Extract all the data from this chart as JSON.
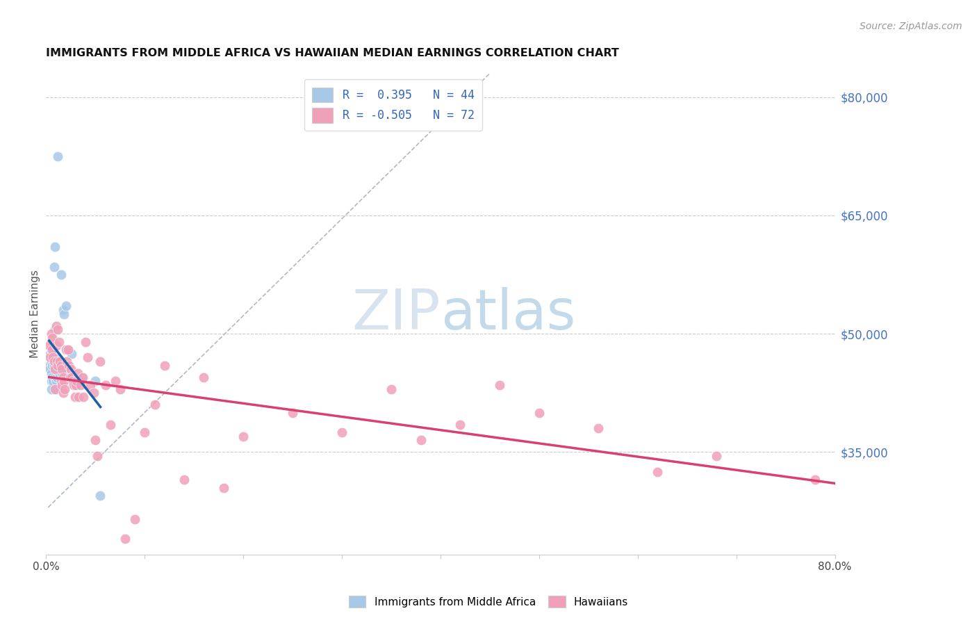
{
  "title": "IMMIGRANTS FROM MIDDLE AFRICA VS HAWAIIAN MEDIAN EARNINGS CORRELATION CHART",
  "source": "Source: ZipAtlas.com",
  "ylabel": "Median Earnings",
  "right_yticks": [
    35000,
    50000,
    65000,
    80000
  ],
  "right_yticklabels": [
    "$35,000",
    "$50,000",
    "$65,000",
    "$80,000"
  ],
  "blue_color": "#a8c8e8",
  "blue_line_color": "#1a5fa8",
  "pink_color": "#f0a0b8",
  "pink_line_color": "#d84070",
  "dash_color": "#b0b8c8",
  "watermark_color": "#c8d8f0",
  "xlim": [
    0.0,
    0.8
  ],
  "ylim": [
    22000,
    83000
  ],
  "blue_scatter_x": [
    0.003,
    0.004,
    0.004,
    0.005,
    0.005,
    0.005,
    0.005,
    0.005,
    0.006,
    0.006,
    0.006,
    0.007,
    0.007,
    0.008,
    0.008,
    0.008,
    0.009,
    0.009,
    0.009,
    0.009,
    0.01,
    0.01,
    0.01,
    0.01,
    0.011,
    0.011,
    0.012,
    0.013,
    0.013,
    0.014,
    0.015,
    0.016,
    0.017,
    0.018,
    0.019,
    0.02,
    0.022,
    0.024,
    0.026,
    0.03,
    0.034,
    0.036,
    0.05,
    0.055
  ],
  "blue_scatter_y": [
    46000,
    47500,
    45500,
    48000,
    46500,
    45000,
    44000,
    43000,
    49000,
    46000,
    44500,
    47500,
    44000,
    58500,
    47000,
    46000,
    61000,
    50500,
    47000,
    44500,
    46500,
    45500,
    44000,
    43000,
    46000,
    44500,
    72500,
    46000,
    45000,
    44800,
    57500,
    45000,
    53000,
    52500,
    45000,
    53500,
    48000,
    44500,
    47500,
    44000,
    44000,
    44500,
    44000,
    29500
  ],
  "pink_scatter_x": [
    0.003,
    0.004,
    0.005,
    0.006,
    0.006,
    0.007,
    0.008,
    0.009,
    0.009,
    0.01,
    0.01,
    0.011,
    0.012,
    0.012,
    0.013,
    0.014,
    0.015,
    0.015,
    0.016,
    0.016,
    0.017,
    0.017,
    0.018,
    0.019,
    0.02,
    0.021,
    0.022,
    0.023,
    0.024,
    0.025,
    0.026,
    0.027,
    0.028,
    0.029,
    0.03,
    0.031,
    0.032,
    0.033,
    0.035,
    0.037,
    0.038,
    0.04,
    0.042,
    0.045,
    0.048,
    0.05,
    0.052,
    0.055,
    0.06,
    0.065,
    0.07,
    0.075,
    0.08,
    0.09,
    0.1,
    0.11,
    0.12,
    0.14,
    0.16,
    0.18,
    0.2,
    0.25,
    0.3,
    0.35,
    0.38,
    0.42,
    0.46,
    0.5,
    0.56,
    0.62,
    0.68,
    0.78
  ],
  "pink_scatter_y": [
    48500,
    47000,
    50000,
    49500,
    48000,
    47000,
    46500,
    45500,
    43000,
    51000,
    48500,
    46500,
    50500,
    46000,
    49000,
    46500,
    46000,
    44000,
    45500,
    43500,
    44500,
    42500,
    44000,
    43000,
    48000,
    46500,
    48000,
    46000,
    44500,
    45500,
    44500,
    44000,
    43500,
    42000,
    43500,
    44000,
    45000,
    42000,
    43500,
    44500,
    42000,
    49000,
    47000,
    43500,
    42500,
    36500,
    34500,
    46500,
    43500,
    38500,
    44000,
    43000,
    24000,
    26500,
    37500,
    41000,
    46000,
    31500,
    44500,
    30500,
    37000,
    40000,
    37500,
    43000,
    36500,
    38500,
    43500,
    40000,
    38000,
    32500,
    34500,
    31500
  ],
  "xtick_positions": [
    0.0,
    0.1,
    0.2,
    0.3,
    0.4,
    0.5,
    0.6,
    0.7,
    0.8
  ],
  "xtick_labels": [
    "0.0%",
    "",
    "",
    "",
    "",
    "",
    "",
    "",
    "80.0%"
  ],
  "blue_line_x": [
    0.003,
    0.055
  ],
  "pink_line_x": [
    0.003,
    0.8
  ],
  "dash_line_x": [
    0.002,
    0.45
  ],
  "dash_line_y": [
    28000,
    83000
  ]
}
